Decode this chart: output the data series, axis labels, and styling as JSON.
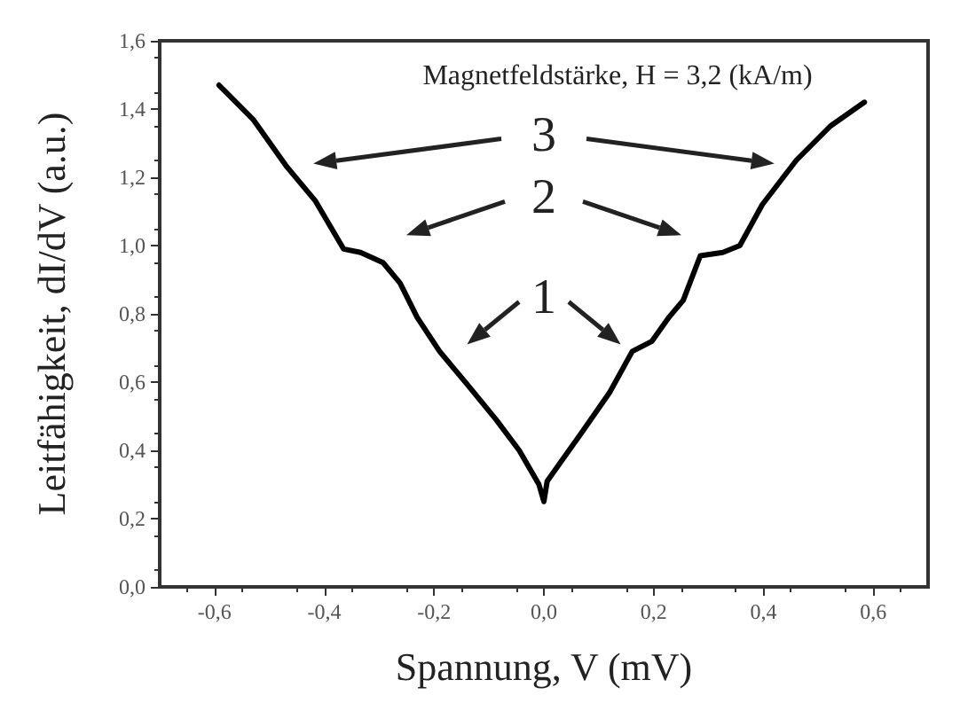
{
  "chart_data": {
    "type": "line",
    "title": "Magnetfeldstärke, H = 3,2 (kA/m)",
    "xlabel": "Spannung, V (mV)",
    "ylabel": "Leitfähigkeit, dI/dV (a.u.)",
    "series": [
      {
        "color": "#000000",
        "x": [
          -0.592,
          -0.53,
          -0.468,
          -0.416,
          -0.365,
          -0.334,
          -0.293,
          -0.262,
          -0.231,
          -0.19,
          -0.138,
          -0.087,
          -0.045,
          -0.009,
          0.0,
          0.006,
          0.068,
          0.12,
          0.161,
          0.197,
          0.228,
          0.254,
          0.285,
          0.326,
          0.357,
          0.398,
          0.46,
          0.522,
          0.584
        ],
        "values": [
          1.47,
          1.37,
          1.23,
          1.13,
          0.99,
          0.98,
          0.95,
          0.89,
          0.79,
          0.69,
          0.59,
          0.49,
          0.4,
          0.3,
          0.25,
          0.31,
          0.45,
          0.57,
          0.69,
          0.72,
          0.79,
          0.84,
          0.97,
          0.98,
          1.0,
          1.12,
          1.25,
          1.35,
          1.42
        ]
      }
    ],
    "annotations": [
      "3",
      "2",
      "1"
    ],
    "xlim": [
      -0.7,
      0.7
    ],
    "ylim": [
      0,
      1.6
    ],
    "xticks": [
      {
        "value": -0.6,
        "label": "-0,6"
      },
      {
        "value": -0.4,
        "label": "-0,4"
      },
      {
        "value": -0.2,
        "label": "-0,2"
      },
      {
        "value": 0,
        "label": "0,0"
      },
      {
        "value": 0.2,
        "label": "0,2"
      },
      {
        "value": 0.4,
        "label": "0,4"
      },
      {
        "value": 0.6,
        "label": "0,6"
      }
    ],
    "yticks": [
      {
        "value": 0,
        "label": "0,0"
      },
      {
        "value": 0.2,
        "label": "0,2"
      },
      {
        "value": 0.4,
        "label": "0,4"
      },
      {
        "value": 0.6,
        "label": "0,6"
      },
      {
        "value": 0.8,
        "label": "0,8"
      },
      {
        "value": 1.0,
        "label": "1,0"
      },
      {
        "value": 1.2,
        "label": "1,2"
      },
      {
        "value": 1.4,
        "label": "1,4"
      },
      {
        "value": 1.6,
        "label": "1,6"
      }
    ]
  }
}
